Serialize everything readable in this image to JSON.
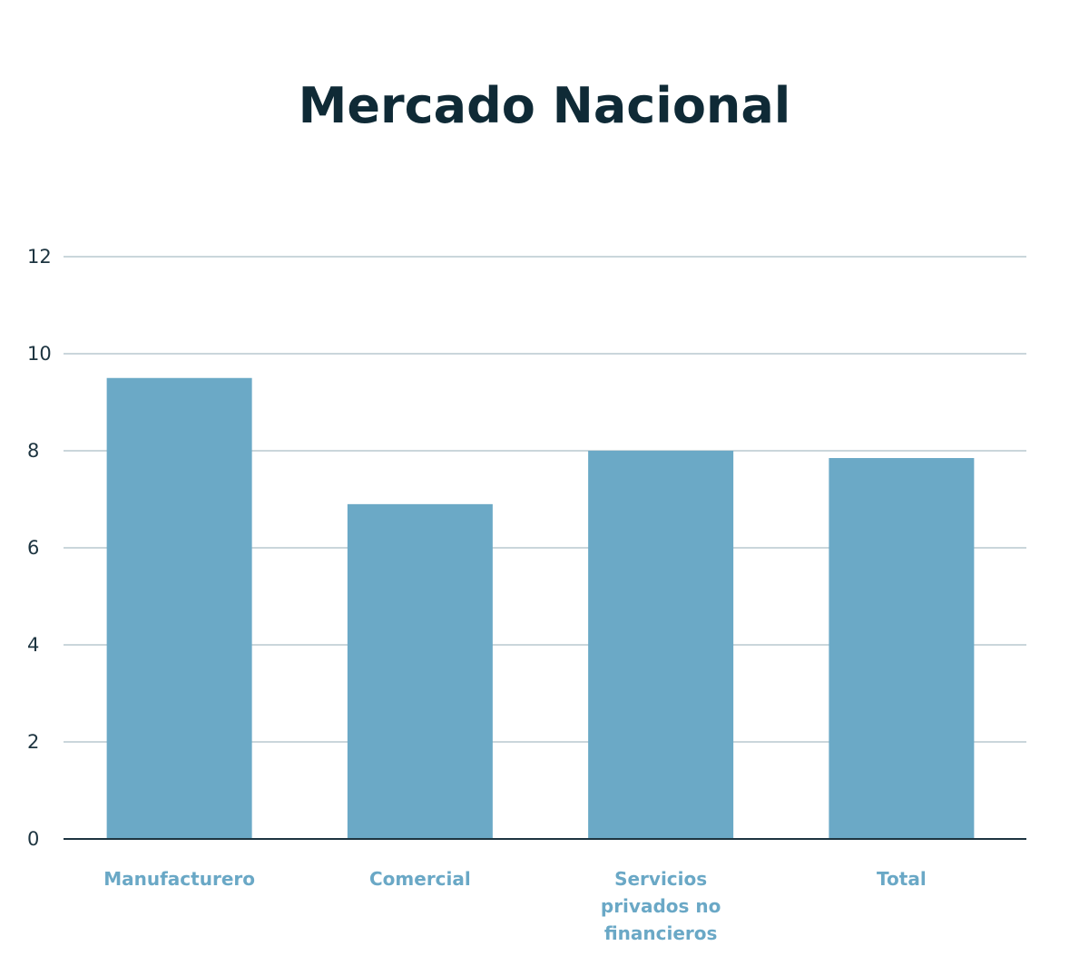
{
  "chart_data": {
    "type": "bar",
    "title": "Mercado Nacional",
    "categories": [
      [
        "Manufacturero"
      ],
      [
        "Comercial"
      ],
      [
        "Servicios",
        "privados no",
        "financieros"
      ],
      [
        "Total"
      ]
    ],
    "values": [
      9.5,
      6.9,
      8.0,
      7.85
    ],
    "ylim": [
      0,
      12
    ],
    "yticks": [
      "0",
      "2",
      "4",
      "6",
      "8",
      "10",
      "12"
    ],
    "grid": true,
    "colors": {
      "bar": "#6ba9c6",
      "title": "#0f2a36",
      "category_label": "#6aa8c6"
    }
  }
}
